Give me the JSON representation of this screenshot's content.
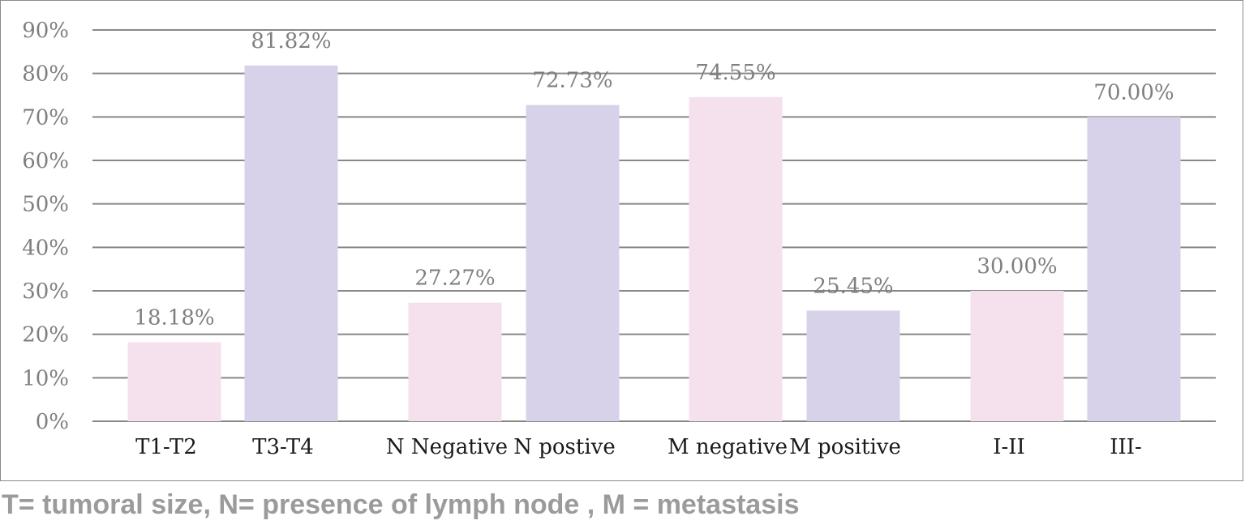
{
  "chart_data": {
    "type": "bar",
    "categories": [
      "T1-T2",
      "T3-T4",
      "N Negative",
      "N postive",
      "M negative",
      "M positive",
      "I-II",
      "III-"
    ],
    "values": [
      18.18,
      81.82,
      27.27,
      72.73,
      74.55,
      25.45,
      30.0,
      70.0
    ],
    "data_labels": [
      "18.18%",
      "81.82%",
      "27.27%",
      "72.73%",
      "74.55%",
      "25.45%",
      "30.00%",
      "70.00%"
    ],
    "y_ticks": [
      "0%",
      "10%",
      "20%",
      "30%",
      "40%",
      "50%",
      "60%",
      "70%",
      "80%",
      "90%"
    ],
    "ylim": [
      0,
      90
    ],
    "grid": true,
    "colors": {
      "pink": "#f5e0ee",
      "lavender": "#d8d1ea",
      "gridline": "#888888"
    },
    "bar_colors": [
      "pink",
      "lavender",
      "pink",
      "lavender",
      "pink",
      "lavender",
      "pink",
      "lavender"
    ]
  },
  "caption": "T= tumoral size, N= presence of lymph node , M = metastasis"
}
